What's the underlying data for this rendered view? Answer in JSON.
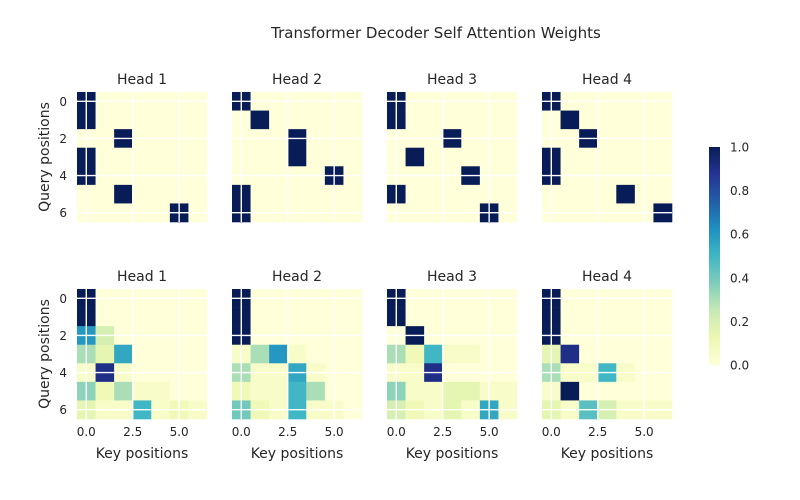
{
  "chart_data": {
    "type": "heatmap",
    "title": "Transformer Decoder Self Attention Weights",
    "rows": 2,
    "cols": 4,
    "grid": true,
    "x_ticks": [
      "0.0",
      "2.5",
      "5.0"
    ],
    "x_tick_values": [
      0,
      2.5,
      5
    ],
    "y_ticks": [
      "0",
      "2",
      "4",
      "6"
    ],
    "y_tick_values": [
      0,
      2,
      4,
      6
    ],
    "xlabel": "Key positions",
    "ylabel": "Query positions",
    "colorbar": {
      "min": 0.0,
      "max": 1.0,
      "ticks": [
        "0.0",
        "0.2",
        "0.4",
        "0.6",
        "0.8",
        "1.0"
      ],
      "tick_values": [
        0,
        0.2,
        0.4,
        0.6,
        0.8,
        1.0
      ],
      "colormap": "YlGnBu",
      "stops": [
        "#ffffd9",
        "#edf8b1",
        "#c7e9b4",
        "#7fcdbb",
        "#41b6c4",
        "#1d91c0",
        "#225ea8",
        "#253494",
        "#081d58"
      ]
    },
    "panels": [
      {
        "title": "Head 1",
        "row": 0,
        "values": [
          [
            1,
            0,
            0,
            0,
            0,
            0,
            0
          ],
          [
            1,
            0,
            0,
            0,
            0,
            0,
            0
          ],
          [
            0,
            0,
            1,
            0,
            0,
            0,
            0
          ],
          [
            1,
            0,
            0,
            0,
            0,
            0,
            0
          ],
          [
            1,
            0,
            0,
            0,
            0,
            0,
            0
          ],
          [
            0,
            0,
            1,
            0,
            0,
            0,
            0
          ],
          [
            0,
            0,
            0,
            0,
            0,
            1,
            0
          ]
        ]
      },
      {
        "title": "Head 2",
        "row": 0,
        "values": [
          [
            1,
            0,
            0,
            0,
            0,
            0,
            0
          ],
          [
            0,
            1,
            0,
            0,
            0,
            0,
            0
          ],
          [
            0,
            0,
            0,
            1,
            0,
            0,
            0
          ],
          [
            0,
            0,
            0,
            1,
            0,
            0,
            0
          ],
          [
            0,
            0,
            0,
            0,
            0,
            1,
            0
          ],
          [
            1,
            0,
            0,
            0,
            0,
            0,
            0
          ],
          [
            1,
            0,
            0,
            0,
            0,
            0,
            0
          ]
        ]
      },
      {
        "title": "Head 3",
        "row": 0,
        "values": [
          [
            1,
            0,
            0,
            0,
            0,
            0,
            0
          ],
          [
            1,
            0,
            0,
            0,
            0,
            0,
            0
          ],
          [
            0,
            0,
            0,
            1,
            0,
            0,
            0
          ],
          [
            0,
            1,
            0,
            0,
            0,
            0,
            0
          ],
          [
            0,
            0,
            0,
            0,
            1,
            0,
            0
          ],
          [
            1,
            0,
            0,
            0,
            0,
            0,
            0
          ],
          [
            0,
            0,
            0,
            0,
            0,
            1,
            0
          ]
        ]
      },
      {
        "title": "Head 4",
        "row": 0,
        "values": [
          [
            1,
            0,
            0,
            0,
            0,
            0,
            0
          ],
          [
            0,
            1,
            0,
            0,
            0,
            0,
            0
          ],
          [
            0,
            0,
            1,
            0,
            0,
            0,
            0
          ],
          [
            1,
            0,
            0,
            0,
            0,
            0,
            0
          ],
          [
            1,
            0,
            0,
            0,
            0,
            0,
            0
          ],
          [
            0,
            0,
            0,
            0,
            1,
            0,
            0
          ],
          [
            0,
            0,
            0,
            0,
            0,
            0,
            1
          ]
        ]
      },
      {
        "title": "Head 1",
        "row": 1,
        "values": [
          [
            1,
            0,
            0,
            0,
            0,
            0,
            0
          ],
          [
            1,
            0,
            0,
            0,
            0,
            0,
            0
          ],
          [
            0.6,
            0.2,
            0,
            0,
            0,
            0,
            0
          ],
          [
            0.3,
            0.15,
            0.55,
            0,
            0,
            0,
            0
          ],
          [
            0.05,
            0.9,
            0.05,
            0,
            0,
            0,
            0
          ],
          [
            0.35,
            0.1,
            0.3,
            0.05,
            0.05,
            0,
            0
          ],
          [
            0.15,
            0.05,
            0.05,
            0.5,
            0.05,
            0.1,
            0.05
          ]
        ]
      },
      {
        "title": "Head 2",
        "row": 1,
        "values": [
          [
            1,
            0,
            0,
            0,
            0,
            0,
            0
          ],
          [
            1,
            0,
            0,
            0,
            0,
            0,
            0
          ],
          [
            1,
            0,
            0,
            0,
            0,
            0,
            0
          ],
          [
            0.05,
            0.3,
            0.6,
            0.05,
            0,
            0,
            0
          ],
          [
            0.3,
            0.05,
            0.05,
            0.55,
            0.05,
            0,
            0
          ],
          [
            0.1,
            0.05,
            0.05,
            0.5,
            0.3,
            0,
            0
          ],
          [
            0.4,
            0.1,
            0.05,
            0.5,
            0.05,
            0.05,
            0
          ]
        ]
      },
      {
        "title": "Head 3",
        "row": 1,
        "values": [
          [
            1,
            0,
            0,
            0,
            0,
            0,
            0
          ],
          [
            1,
            0,
            0,
            0,
            0,
            0,
            0
          ],
          [
            0,
            1,
            0,
            0,
            0,
            0,
            0
          ],
          [
            0.3,
            0.1,
            0.5,
            0.05,
            0.05,
            0,
            0
          ],
          [
            0.05,
            0.05,
            0.9,
            0,
            0,
            0,
            0
          ],
          [
            0.35,
            0.05,
            0.05,
            0.15,
            0.15,
            0.05,
            0.05
          ],
          [
            0.2,
            0.1,
            0.05,
            0.15,
            0.05,
            0.55,
            0.05
          ]
        ]
      },
      {
        "title": "Head 4",
        "row": 1,
        "values": [
          [
            1,
            0,
            0,
            0,
            0,
            0,
            0
          ],
          [
            1,
            0,
            0,
            0,
            0,
            0,
            0
          ],
          [
            1,
            0,
            0,
            0,
            0,
            0,
            0
          ],
          [
            0.15,
            0.9,
            0,
            0,
            0,
            0,
            0
          ],
          [
            0.3,
            0.05,
            0.05,
            0.5,
            0.05,
            0,
            0
          ],
          [
            0.05,
            1,
            0,
            0,
            0,
            0,
            0
          ],
          [
            0.15,
            0.05,
            0.45,
            0.2,
            0.05,
            0.05,
            0.05
          ]
        ]
      }
    ]
  }
}
